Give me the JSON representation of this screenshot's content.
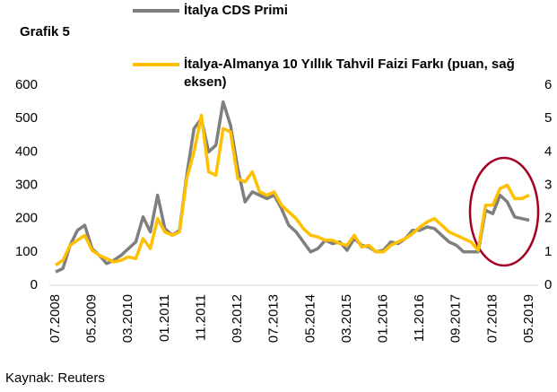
{
  "chart_data": {
    "type": "line",
    "title": "Grafik 5",
    "source": "Kaynak: Reuters",
    "categories": [
      "07.2008",
      null,
      null,
      null,
      null,
      "05.2009",
      null,
      null,
      null,
      null,
      "03.2010",
      null,
      null,
      null,
      null,
      "01.2011",
      null,
      null,
      null,
      null,
      "11.2011",
      null,
      null,
      null,
      null,
      "09.2012",
      null,
      null,
      null,
      null,
      "07.2013",
      null,
      null,
      null,
      null,
      "05.2014",
      null,
      null,
      null,
      null,
      "03.2015",
      null,
      null,
      null,
      null,
      "01.2016",
      null,
      null,
      null,
      null,
      "11.2016",
      null,
      null,
      null,
      null,
      "09.2017",
      null,
      null,
      null,
      null,
      "07.2018",
      null,
      null,
      null,
      null,
      "05.2019"
    ],
    "series": [
      {
        "name": "İtalya CDS Primi",
        "color": "#7f7f7f",
        "values": [
          40,
          50,
          120,
          165,
          180,
          110,
          90,
          65,
          75,
          90,
          110,
          130,
          205,
          160,
          270,
          170,
          150,
          165,
          330,
          470,
          500,
          400,
          420,
          550,
          480,
          350,
          250,
          280,
          270,
          260,
          270,
          230,
          180,
          160,
          130,
          100,
          110,
          135,
          125,
          130,
          105,
          140,
          120,
          115,
          100,
          105,
          130,
          125,
          140,
          165,
          165,
          175,
          170,
          150,
          130,
          120,
          100,
          100,
          100,
          225,
          215,
          270,
          250,
          205,
          200,
          195
        ]
      },
      {
        "name": "İtalya-Almanya 10 Yıllık Tahvil Faizi Farkı (puan, sağ eksen)",
        "color": "#ffc000",
        "axis": "y2",
        "values": [
          0.6,
          0.75,
          1.2,
          1.35,
          1.5,
          1.05,
          0.9,
          0.8,
          0.7,
          0.75,
          0.85,
          0.8,
          1.4,
          1.1,
          2.0,
          1.6,
          1.5,
          1.6,
          3.2,
          4.0,
          5.1,
          3.4,
          3.3,
          4.7,
          4.6,
          3.2,
          3.1,
          3.4,
          2.8,
          2.7,
          2.8,
          2.4,
          2.2,
          2.0,
          1.7,
          1.5,
          1.45,
          1.35,
          1.35,
          1.25,
          1.2,
          1.5,
          1.15,
          1.2,
          1.0,
          1.0,
          1.2,
          1.3,
          1.4,
          1.55,
          1.75,
          1.9,
          2.0,
          1.8,
          1.6,
          1.5,
          1.4,
          1.3,
          1.05,
          2.4,
          2.4,
          2.9,
          3.0,
          2.6,
          2.6,
          2.7
        ]
      }
    ],
    "ylim": [
      0,
      600
    ],
    "yticks": [
      0,
      100,
      200,
      300,
      400,
      500,
      600
    ],
    "y2lim": [
      0,
      6
    ],
    "y2ticks": [
      0,
      1,
      2,
      3,
      4,
      5,
      6
    ],
    "grid": false
  }
}
